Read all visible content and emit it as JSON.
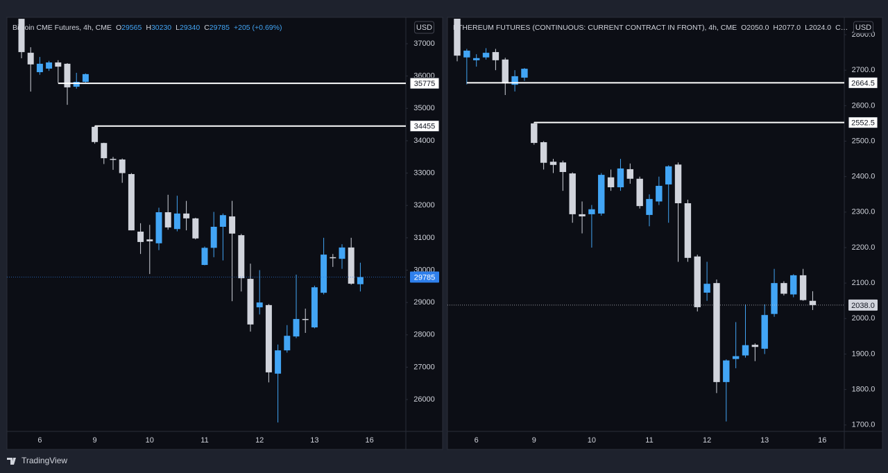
{
  "chart_data": [
    {
      "type": "candlestick",
      "title": "Bitcoin CME Futures, 4h, CME",
      "legend": [
        {
          "key": "O",
          "value": "29565"
        },
        {
          "key": "H",
          "value": "30230"
        },
        {
          "key": "L",
          "value": "29340"
        },
        {
          "key": "C",
          "value": "29785"
        }
      ],
      "change": "+205 (+0.69%)",
      "legend_color": "#42a5f5",
      "currency": "USD",
      "categories": [
        null,
        null,
        "6",
        null,
        null,
        null,
        null,
        null,
        "9",
        null,
        null,
        null,
        null,
        null,
        "10",
        null,
        null,
        null,
        null,
        null,
        "11",
        null,
        null,
        null,
        null,
        null,
        "12",
        null,
        null,
        null,
        null,
        null,
        "13",
        null,
        null,
        null,
        null,
        null,
        "16"
      ],
      "open": [
        37770,
        36720,
        36120,
        36230,
        36420,
        36380,
        35670,
        35820,
        34430,
        33930,
        33440,
        33420,
        32970,
        31190,
        30950,
        30830,
        31790,
        31270,
        31750,
        31600,
        30160,
        30690,
        31340,
        31660,
        31080,
        29730,
        28850,
        28920,
        26800,
        27520,
        27950,
        28490,
        28230,
        29300,
        30400,
        30350,
        30700,
        29565,
        null
      ],
      "high": [
        37770,
        36890,
        36590,
        36470,
        36490,
        36400,
        36100,
        36080,
        34455,
        33940,
        33500,
        33450,
        33000,
        31450,
        31400,
        31930,
        32330,
        32300,
        32140,
        31620,
        30730,
        31800,
        31750,
        32140,
        31120,
        30200,
        30000,
        28950,
        27700,
        28300,
        29860,
        28810,
        29520,
        31000,
        30500,
        30800,
        31000,
        30230,
        null
      ],
      "low": [
        36550,
        35520,
        36040,
        36160,
        35790,
        35110,
        35610,
        35800,
        33910,
        33280,
        33100,
        32700,
        31230,
        30500,
        29880,
        30620,
        31250,
        31200,
        31230,
        30950,
        30150,
        30400,
        30300,
        29040,
        29340,
        28100,
        28630,
        26530,
        25290,
        27450,
        27900,
        28060,
        28200,
        29250,
        30100,
        30040,
        29550,
        29340,
        null
      ],
      "close": [
        36740,
        36360,
        36380,
        36420,
        36290,
        35650,
        35820,
        36060,
        33960,
        33460,
        33420,
        33000,
        31230,
        30870,
        30890,
        31790,
        31320,
        31750,
        31600,
        30980,
        30690,
        31340,
        31700,
        31130,
        29750,
        28320,
        29000,
        26840,
        27520,
        27970,
        28490,
        28470,
        29470,
        30480,
        30370,
        30700,
        29580,
        29785,
        null
      ],
      "up_color": "#42a5f5",
      "down_color": "#d1d4dc",
      "ylim": [
        25015,
        37772
      ],
      "yticks": [
        26000,
        27000,
        28000,
        29000,
        30000,
        31000,
        32000,
        33000,
        34000,
        35000,
        36000,
        37000
      ],
      "grid": false,
      "levels": [
        {
          "value": 35775
        },
        {
          "value": 34455
        }
      ],
      "price_line": {
        "value": 29785,
        "color": "#2f80ed",
        "text_color": "#ffffff"
      }
    },
    {
      "type": "candlestick",
      "title": "ETHEREUM FUTURES (CONTINUOUS: CURRENT CONTRACT IN FRONT), 4h, CME",
      "legend": [
        {
          "key": "O",
          "value": "2050.0"
        },
        {
          "key": "H",
          "value": "2077.0"
        },
        {
          "key": "L",
          "value": "2024.0"
        }
      ],
      "truncated": "C…",
      "legend_color": "#d1d4dc",
      "currency": "USD",
      "categories": [
        null,
        null,
        "6",
        null,
        null,
        null,
        null,
        null,
        "9",
        null,
        null,
        null,
        null,
        null,
        "10",
        null,
        null,
        null,
        null,
        null,
        "11",
        null,
        null,
        null,
        null,
        null,
        "12",
        null,
        null,
        null,
        null,
        null,
        "13",
        null,
        null,
        null,
        null,
        null,
        "16"
      ],
      "open": [
        2845,
        2736,
        2728,
        2736,
        2751,
        2730,
        2659,
        2679,
        2550,
        2497,
        2442,
        2440,
        2409,
        2294,
        2294,
        2296,
        2398,
        2370,
        2421,
        2394,
        2292,
        2330,
        2378,
        2434,
        2325,
        2175,
        2073,
        2100,
        1821,
        1886,
        1896,
        1926,
        1915,
        2013,
        2100,
        2068,
        2122,
        2050,
        null
      ],
      "high": [
        2845,
        2760,
        2745,
        2762,
        2760,
        2735,
        2700,
        2706,
        2553,
        2500,
        2450,
        2445,
        2412,
        2330,
        2320,
        2410,
        2420,
        2450,
        2437,
        2400,
        2350,
        2400,
        2432,
        2440,
        2335,
        2180,
        2160,
        2110,
        1885,
        1990,
        2040,
        1930,
        2040,
        2140,
        2105,
        2125,
        2140,
        2077,
        null
      ],
      "low": [
        2725,
        2660,
        2710,
        2730,
        2700,
        2630,
        2640,
        2670,
        2490,
        2420,
        2410,
        2360,
        2270,
        2240,
        2200,
        2290,
        2360,
        2360,
        2380,
        2310,
        2260,
        2320,
        2270,
        2160,
        2160,
        2020,
        2050,
        1790,
        1710,
        1860,
        1890,
        1880,
        1900,
        2005,
        2065,
        2060,
        2050,
        2024,
        null
      ],
      "close": [
        2741,
        2755,
        2734,
        2749,
        2728,
        2663,
        2683,
        2704,
        2495,
        2439,
        2433,
        2413,
        2294,
        2288,
        2308,
        2405,
        2370,
        2423,
        2394,
        2317,
        2337,
        2374,
        2429,
        2325,
        2171,
        2032,
        2098,
        1821,
        1882,
        1894,
        1925,
        1920,
        2010,
        2100,
        2070,
        2122,
        2052,
        2038,
        null
      ],
      "up_color": "#42a5f5",
      "down_color": "#d1d4dc",
      "ylim": [
        1682,
        2845
      ],
      "yticks": [
        {
          "value": 1700,
          "label": "1700.0"
        },
        {
          "value": 1800,
          "label": "1800.0"
        },
        {
          "value": 1900,
          "label": "1900.0"
        },
        {
          "value": 2000,
          "label": "2000.0"
        },
        {
          "value": 2100,
          "label": "2100.0"
        },
        {
          "value": 2200,
          "label": "2200.0"
        },
        {
          "value": 2300,
          "label": "2300.0"
        },
        {
          "value": 2400,
          "label": "2400.0"
        },
        {
          "value": 2500,
          "label": "2500.0"
        },
        {
          "value": 2600,
          "label": "2600.0"
        },
        {
          "value": 2700,
          "label": "2700.0"
        },
        {
          "value": 2800,
          "label": "2800.0"
        }
      ],
      "grid": false,
      "levels": [
        {
          "value": 2664.5,
          "label": "2664.5"
        },
        {
          "value": 2552.5,
          "label": "2552.5"
        }
      ],
      "price_line": {
        "value": 2038,
        "label": "2038.0",
        "color": "#d1d4dc",
        "text_color": "#131722"
      }
    }
  ],
  "footer": "TradingView"
}
